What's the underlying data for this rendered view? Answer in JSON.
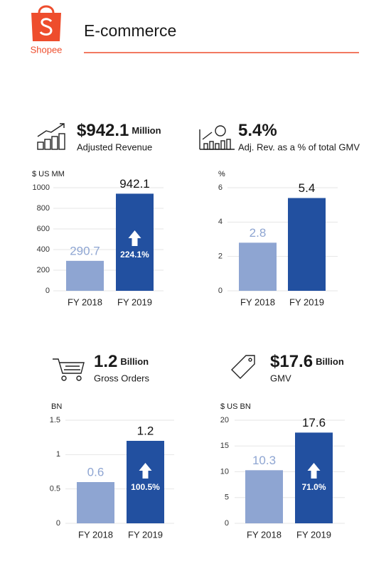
{
  "header": {
    "logo_text": "Shopee",
    "title": "E-commerce"
  },
  "chart_data": [
    {
      "type": "bar",
      "headline": "$942.1",
      "headline_unit": "Million",
      "metric": "Adjusted Revenue",
      "y_label": "$ US MM",
      "categories": [
        "FY 2018",
        "FY 2019"
      ],
      "values": [
        290.7,
        942.1
      ],
      "colors": [
        "#8ea5d2",
        "#2250a0"
      ],
      "growth": "224.1%",
      "ylim": [
        0,
        1000
      ],
      "yticks": [
        0,
        200,
        400,
        600,
        800,
        1000
      ],
      "grid": true
    },
    {
      "type": "bar",
      "headline": "5.4%",
      "metric": "Adj. Rev. as a % of total GMV",
      "y_label": "%",
      "categories": [
        "FY 2018",
        "FY 2019"
      ],
      "values": [
        2.8,
        5.4
      ],
      "colors": [
        "#8ea5d2",
        "#2250a0"
      ],
      "ylim": [
        0,
        6
      ],
      "yticks": [
        0,
        2,
        4,
        6
      ],
      "grid": true
    },
    {
      "type": "bar",
      "headline": "1.2",
      "headline_unit": "Billion",
      "metric": "Gross Orders",
      "y_label": "BN",
      "categories": [
        "FY 2018",
        "FY 2019"
      ],
      "values": [
        0.6,
        1.2
      ],
      "colors": [
        "#8ea5d2",
        "#2250a0"
      ],
      "growth": "100.5%",
      "ylim": [
        0,
        1.5
      ],
      "yticks": [
        0,
        0.5,
        1,
        1.5
      ],
      "grid": true
    },
    {
      "type": "bar",
      "headline": "$17.6",
      "headline_unit": "Billion",
      "metric": "GMV",
      "y_label": "$ US BN",
      "categories": [
        "FY 2018",
        "FY 2019"
      ],
      "values": [
        10.3,
        17.6
      ],
      "colors": [
        "#8ea5d2",
        "#2250a0"
      ],
      "growth": "71.0%",
      "ylim": [
        0,
        20
      ],
      "yticks": [
        0,
        5,
        10,
        15,
        20
      ],
      "grid": true
    }
  ]
}
